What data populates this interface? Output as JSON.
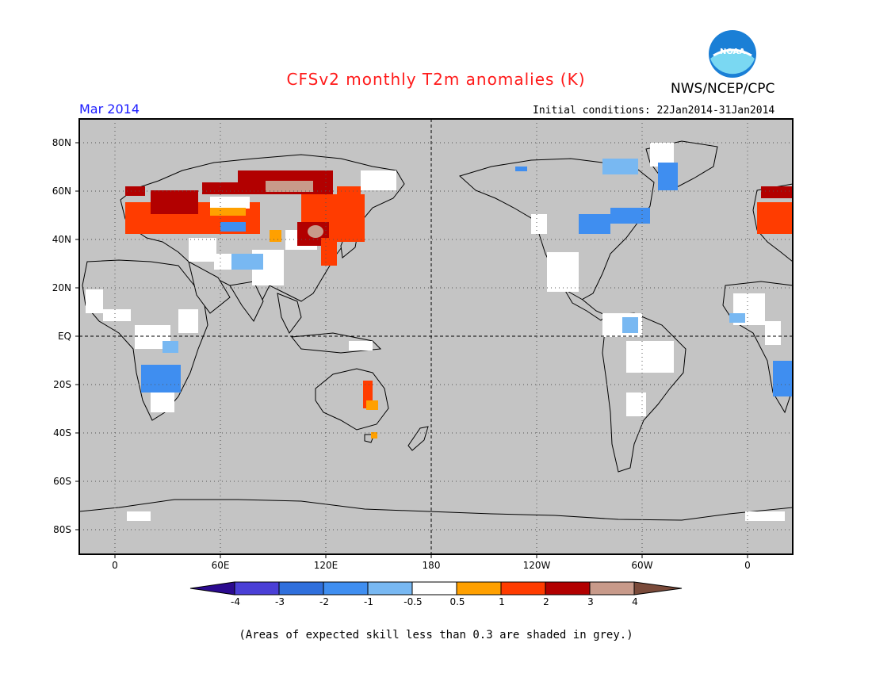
{
  "title": "CFSv2 monthly T2m anomalies (K)",
  "agency": "NWS/NCEP/CPC",
  "logo_text": "NOAA",
  "valid_month": "Mar 2014",
  "initial_conditions": "Initial conditions: 22Jan2014-31Jan2014",
  "lat_labels": [
    "80N",
    "60N",
    "40N",
    "20N",
    "EQ",
    "20S",
    "40S",
    "60S",
    "80S"
  ],
  "lon_labels": [
    "0",
    "60E",
    "120E",
    "180",
    "120W",
    "60W",
    "0"
  ],
  "colorbar": {
    "labels": [
      "-4",
      "-3",
      "-2",
      "-1",
      "-0.5",
      "0.5",
      "1",
      "2",
      "3",
      "4"
    ],
    "colors": [
      "#2b0a8f",
      "#4a3fd6",
      "#2f6fdc",
      "#3f8ef0",
      "#78b8f2",
      "#ffffff",
      "#ffa000",
      "#ff3c00",
      "#b20000",
      "#c89a8a",
      "#7a4a3a"
    ]
  },
  "colors": {
    "ocean_grey": "#c4c4c4",
    "title": "#ff1a1a",
    "month": "#1a1aff"
  },
  "footnote": "(Areas of expected skill less than 0.3 are shaded in grey.)"
}
